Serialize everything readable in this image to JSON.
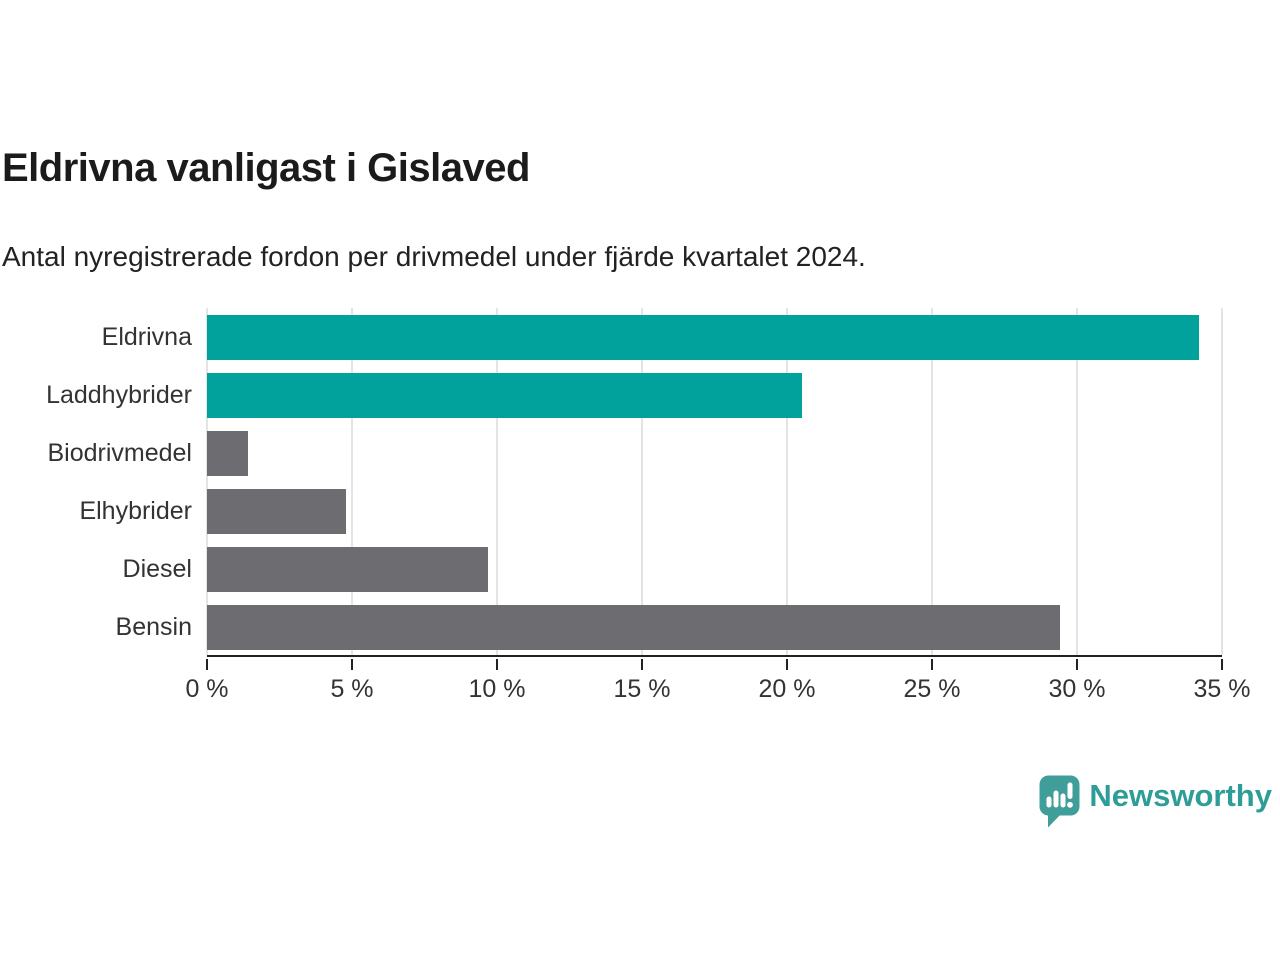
{
  "chart_data": {
    "type": "bar",
    "orientation": "horizontal",
    "title": "Eldrivna vanligast i Gislaved",
    "subtitle": "Antal nyregistrerade fordon per drivmedel under fjärde kvartalet 2024.",
    "categories": [
      "Eldrivna",
      "Laddhybrider",
      "Biodrivmedel",
      "Elhybrider",
      "Diesel",
      "Bensin"
    ],
    "values": [
      34.2,
      20.5,
      1.4,
      4.8,
      9.7,
      29.4
    ],
    "unit": "%",
    "bar_colors": [
      "#00a29b",
      "#00a29b",
      "#6c6c71",
      "#6c6c71",
      "#6c6c71",
      "#6c6c71"
    ],
    "xlim": [
      0,
      35
    ],
    "x_ticks": [
      0,
      5,
      10,
      15,
      20,
      25,
      30,
      35
    ],
    "x_tick_labels": [
      "0 %",
      "5 %",
      "10 %",
      "15 %",
      "20 %",
      "25 %",
      "30 %",
      "35 %"
    ],
    "grid": true,
    "legend": false
  },
  "colors": {
    "highlight": "#00a29b",
    "neutral": "#6c6c71",
    "grid": "#e4e4e4",
    "axis": "#222222",
    "label_text": "#333333",
    "brand": "#2f9d97"
  },
  "logo": {
    "text": "Newsworthy",
    "icon": "newsworthy-speech-bubble-chart-icon"
  }
}
